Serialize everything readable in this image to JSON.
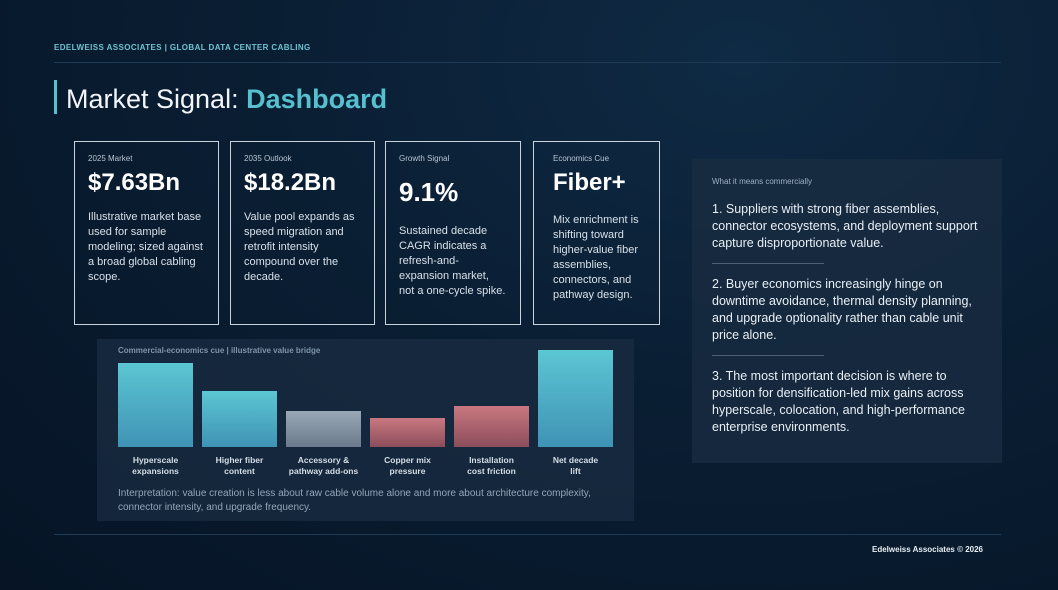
{
  "header": {
    "kicker": "EDELWEISS ASSOCIATES | GLOBAL DATA CENTER CABLING",
    "title_prefix": "Market Signal: ",
    "title_accent": "Dashboard"
  },
  "cards": [
    {
      "label": "2025 Market",
      "value": "$7.63Bn",
      "desc": "Illustrative market base used for sample modeling; sized against a broad global cabling scope."
    },
    {
      "label": "2035 Outlook",
      "value": "$18.2Bn",
      "desc": "Value pool expands as speed migration and retrofit intensity compound over the decade."
    },
    {
      "label": "Growth Signal",
      "value": "9.1%",
      "desc": "Sustained decade CAGR indicates a refresh-and-expansion market, not a one-cycle spike."
    },
    {
      "label": "Economics Cue",
      "value": "Fiber+",
      "desc": "Mix enrichment is shifting toward higher-value fiber assemblies, connectors, and pathway design."
    }
  ],
  "side_panel": {
    "label": "What it means commercially",
    "points": [
      "1. Suppliers with strong fiber assemblies, connector ecosystems, and deployment support capture disproportionate value.",
      "2. Buyer economics increasingly hinge on downtime avoidance, thermal density planning, and upgrade optionality rather than cable unit price alone.",
      "3. The most important decision is where to position for densification-led mix gains across hyperscale, colocation, and high-performance enterprise environments."
    ]
  },
  "bridge": {
    "label": "Commercial-economics cue | illustrative value bridge",
    "interpretation": "Interpretation: value creation is less about raw cable volume alone and more about architecture complexity, connector intensity, and upgrade frequency."
  },
  "chart_data": {
    "type": "bar",
    "title": "Commercial-economics cue | illustrative value bridge",
    "categories": [
      [
        "Hyperscale",
        "expansions"
      ],
      [
        "Higher fiber",
        "content"
      ],
      [
        "Accessory &",
        "pathway add-ons"
      ],
      [
        "Copper mix",
        "pressure"
      ],
      [
        "Installation",
        "cost friction"
      ],
      [
        "Net decade",
        "lift"
      ]
    ],
    "values": [
      84,
      56,
      36,
      29,
      41,
      97
    ],
    "ylim": [
      0,
      100
    ],
    "colors": {
      "positive": "#56c0cf",
      "neutral": "#8a9cad",
      "negative": "#c96e78"
    },
    "bar_kinds": [
      "positive",
      "positive",
      "neutral",
      "negative",
      "negative",
      "positive"
    ]
  },
  "footer": {
    "copyright": "Edelweiss Associates © 2026"
  }
}
